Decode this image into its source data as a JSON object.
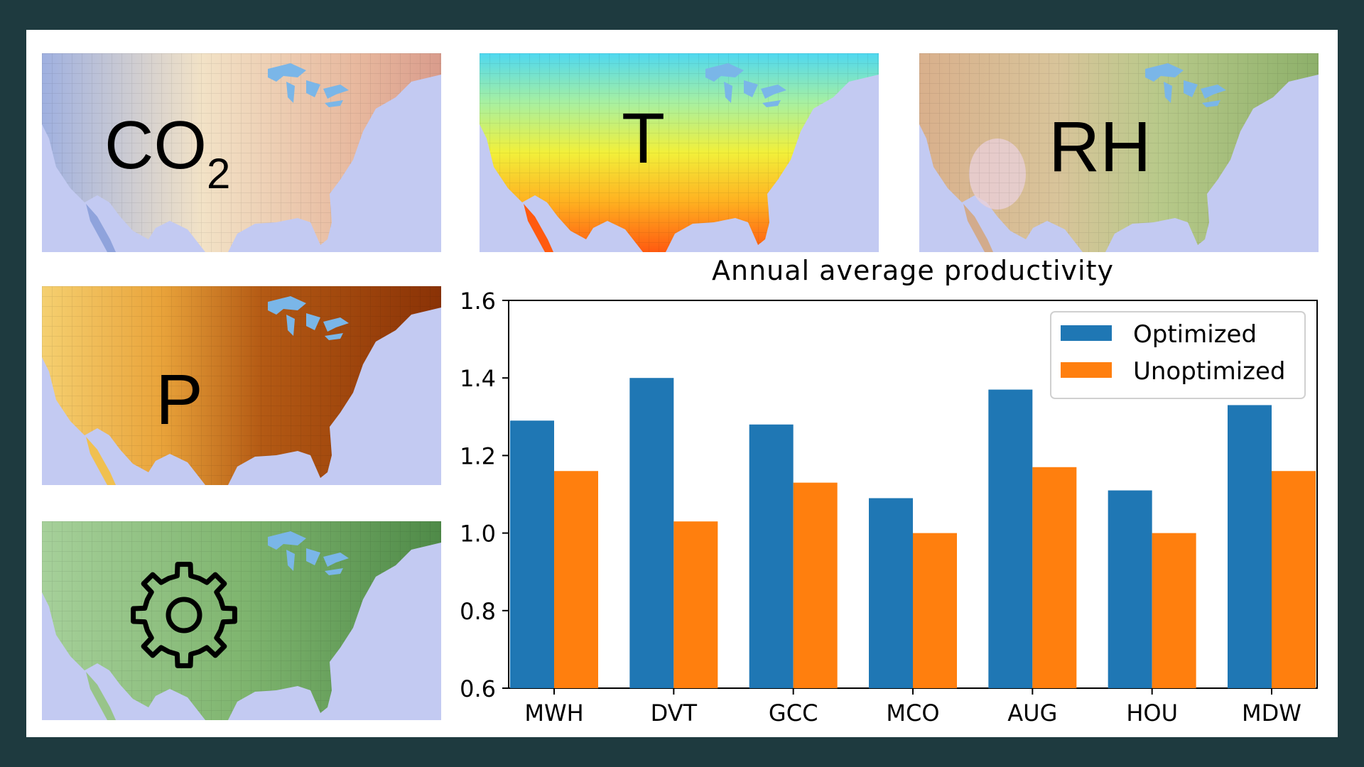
{
  "maps": {
    "co2": {
      "label": "CO",
      "sub": "2"
    },
    "t": {
      "label": "T"
    },
    "rh": {
      "label": "RH"
    },
    "p": {
      "label": "P"
    },
    "gear": {
      "icon": "gear-icon"
    }
  },
  "colors": {
    "optimized": "#1f77b4",
    "unoptimized": "#ff7f0e",
    "ocean": "#c3caf2",
    "lakes": "#7ab6e8"
  },
  "chart_data": {
    "type": "bar",
    "title": "Annual average productivity",
    "xlabel": "",
    "ylabel": "",
    "categories": [
      "MWH",
      "DVT",
      "GCC",
      "MCO",
      "AUG",
      "HOU",
      "MDW"
    ],
    "series": [
      {
        "name": "Optimized",
        "values": [
          1.29,
          1.4,
          1.28,
          1.09,
          1.37,
          1.11,
          1.33
        ]
      },
      {
        "name": "Unoptimized",
        "values": [
          1.16,
          1.03,
          1.13,
          1.0,
          1.17,
          1.0,
          1.16
        ]
      }
    ],
    "ylim": [
      0.6,
      1.6
    ],
    "yticks": [
      "0.6",
      "0.8",
      "1.0",
      "1.2",
      "1.4",
      "1.6"
    ],
    "legend_position": "top-right",
    "grid": false
  }
}
